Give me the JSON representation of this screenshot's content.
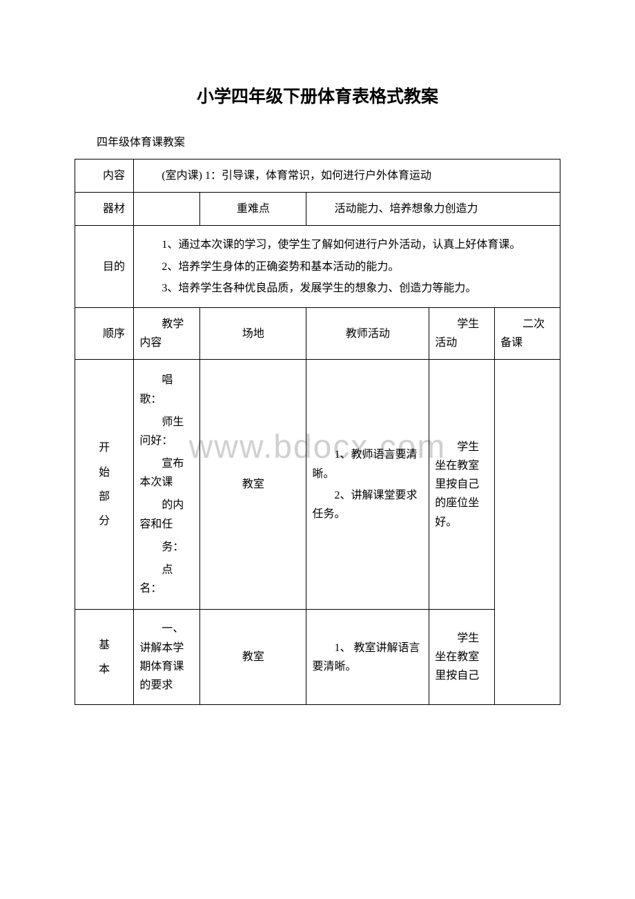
{
  "title": "小学四年级下册体育表格式教案",
  "subtitle": "四年级体育课教案",
  "watermark": "www.bdocx.com",
  "colors": {
    "text": "#000000",
    "background": "#ffffff",
    "border": "#000000",
    "watermark": "#d0d0d0"
  },
  "typography": {
    "title_fontsize": 25,
    "title_weight": "bold",
    "body_fontsize": 16,
    "font_family": "SimSun"
  },
  "labels": {
    "content": "内容",
    "equipment": "器材",
    "difficulty": "重难点",
    "purpose": "目的",
    "sequence": "顺序",
    "teach_content": "教学内容",
    "place": "场地",
    "teacher_act": "教师活动",
    "student_act": "学生活动",
    "backup": "二次备课"
  },
  "row_content": "(室内课) 1：引导课，体育常识，如何进行户外体育运动",
  "row_difficulty": "活动能力、培养想象力创造力",
  "purpose_items": [
    "1、通过本次课的学习，使学生了解如何进行户外活动，认真上好体育课。",
    "2、培养学生身体的正确姿势和基本活动的能力。",
    "3、培养学生各种优良品质，发展学生的想象力、创造力等能力。"
  ],
  "sections": [
    {
      "seq_chars": [
        "开",
        "始",
        "部",
        "分"
      ],
      "teach_content": [
        "唱歌：",
        "师生问好：",
        "宣布本次课",
        "的内容和任",
        "务：",
        "点名："
      ],
      "place": "教室",
      "teacher": [
        "1、教师语言要清晰。",
        "2、讲解课堂要求任务。"
      ],
      "student": "学生坐在教室里按自己的座位坐好。"
    },
    {
      "seq_chars": [
        "基",
        "本"
      ],
      "teach_content_pre": "一、讲解本学期体育课的要求",
      "place": "教室",
      "teacher": [
        "1、 教室讲解语言要清晰。"
      ],
      "student": "学生坐在教室里按自己"
    }
  ]
}
